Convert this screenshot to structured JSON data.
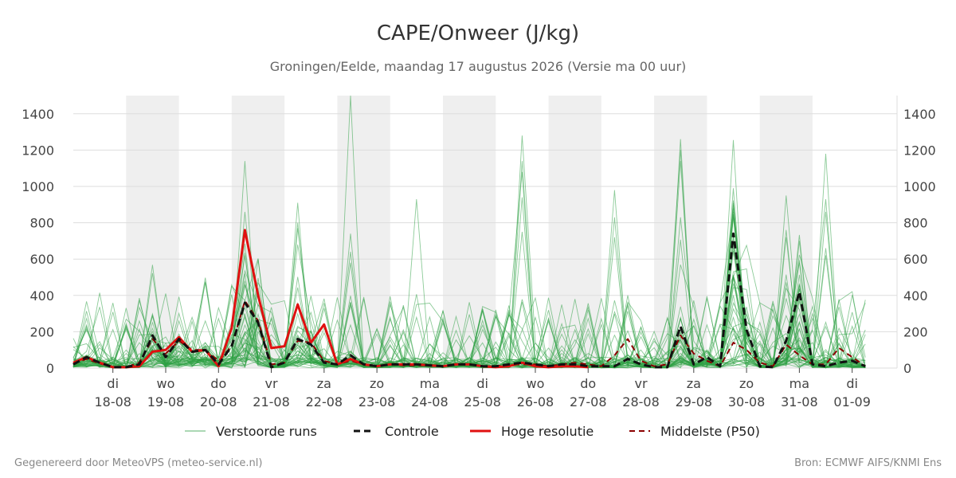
{
  "chart_data": {
    "type": "line",
    "title": "CAPE/Onweer (J/kg)",
    "subtitle": "Groningen/Eelde, maandag 17 augustus 2026 (Versie ma 00 uur)",
    "ylim": [
      0,
      1500
    ],
    "yticks": [
      0,
      200,
      400,
      600,
      800,
      1000,
      1200,
      1400
    ],
    "xlim": [
      0,
      15.6
    ],
    "x_ticks": [
      {
        "x": 0.75,
        "day": "di",
        "date": "18-08"
      },
      {
        "x": 1.75,
        "day": "wo",
        "date": "19-08"
      },
      {
        "x": 2.75,
        "day": "do",
        "date": "20-08"
      },
      {
        "x": 3.75,
        "day": "vr",
        "date": "21-08"
      },
      {
        "x": 4.75,
        "day": "za",
        "date": "22-08"
      },
      {
        "x": 5.75,
        "day": "zo",
        "date": "23-08"
      },
      {
        "x": 6.75,
        "day": "ma",
        "date": "24-08"
      },
      {
        "x": 7.75,
        "day": "di",
        "date": "25-08"
      },
      {
        "x": 8.75,
        "day": "wo",
        "date": "26-08"
      },
      {
        "x": 9.75,
        "day": "do",
        "date": "27-08"
      },
      {
        "x": 10.75,
        "day": "vr",
        "date": "28-08"
      },
      {
        "x": 11.75,
        "day": "za",
        "date": "29-08"
      },
      {
        "x": 12.75,
        "day": "zo",
        "date": "30-08"
      },
      {
        "x": 13.75,
        "day": "ma",
        "date": "31-08"
      },
      {
        "x": 14.75,
        "day": "di",
        "date": "01-09"
      }
    ],
    "shaded_bands": [
      [
        1.0,
        2.0
      ],
      [
        3.0,
        4.0
      ],
      [
        5.0,
        6.0
      ],
      [
        7.0,
        8.0
      ],
      [
        9.0,
        10.0
      ],
      [
        11.0,
        12.0
      ],
      [
        13.0,
        14.0
      ]
    ],
    "grid": true,
    "legend_position": "bottom",
    "series": [
      {
        "name": "Controle",
        "color": "#111111",
        "x": [
          0,
          0.25,
          0.5,
          0.75,
          1.0,
          1.25,
          1.5,
          1.75,
          2.0,
          2.25,
          2.5,
          2.75,
          3.0,
          3.25,
          3.5,
          3.75,
          4.0,
          4.25,
          4.5,
          4.75,
          5.0,
          5.25,
          5.5,
          5.75,
          6.0,
          6.25,
          6.5,
          6.75,
          7.0,
          7.25,
          7.5,
          7.75,
          8.0,
          8.25,
          8.5,
          8.75,
          9.0,
          9.25,
          9.5,
          9.75,
          10.0,
          10.25,
          10.5,
          10.75,
          11.0,
          11.25,
          11.5,
          11.75,
          12.0,
          12.25,
          12.5,
          12.75,
          13.0,
          13.25,
          13.5,
          13.75,
          14.0,
          14.25,
          14.5,
          14.75,
          15.0
        ],
        "values": [
          20,
          60,
          30,
          5,
          5,
          20,
          180,
          60,
          160,
          90,
          100,
          20,
          120,
          360,
          250,
          5,
          30,
          160,
          130,
          30,
          20,
          70,
          20,
          10,
          20,
          20,
          20,
          15,
          10,
          20,
          20,
          10,
          10,
          20,
          30,
          20,
          10,
          20,
          20,
          10,
          10,
          10,
          50,
          20,
          5,
          5,
          230,
          20,
          60,
          10,
          740,
          210,
          10,
          5,
          150,
          420,
          20,
          10,
          30,
          40,
          10
        ]
      },
      {
        "name": "Hoge resolutie",
        "color": "#e01010",
        "x": [
          0,
          0.25,
          0.5,
          0.75,
          1.0,
          1.25,
          1.5,
          1.75,
          2.0,
          2.25,
          2.5,
          2.75,
          3.0,
          3.25,
          3.5,
          3.75,
          4.0,
          4.25,
          4.5,
          4.75,
          5.0,
          5.25,
          5.5,
          5.75,
          6.0,
          6.25,
          6.5,
          6.75,
          7.0,
          7.25,
          7.5,
          7.75,
          8.0,
          8.25,
          8.5,
          8.75,
          9.0,
          9.25,
          9.5,
          9.75
        ],
        "values": [
          30,
          60,
          30,
          5,
          5,
          10,
          90,
          100,
          170,
          90,
          100,
          10,
          220,
          760,
          400,
          110,
          120,
          350,
          140,
          240,
          20,
          50,
          20,
          10,
          20,
          20,
          20,
          15,
          10,
          20,
          20,
          10,
          5,
          10,
          30,
          10,
          5,
          10,
          10,
          5
        ]
      },
      {
        "name": "Middelste (P50)",
        "color": "#8b0000",
        "x": [
          0,
          0.25,
          0.5,
          0.75,
          1.0,
          1.25,
          1.5,
          1.75,
          2.0,
          2.25,
          2.5,
          2.75,
          3.0,
          3.25,
          3.5,
          3.75,
          4.0,
          4.25,
          4.5,
          4.75,
          5.0,
          5.25,
          5.5,
          5.75,
          6.0,
          6.25,
          6.5,
          6.75,
          7.0,
          7.25,
          7.5,
          7.75,
          8.0,
          8.25,
          8.5,
          8.75,
          9.0,
          9.25,
          9.5,
          9.75,
          10.0,
          10.25,
          10.5,
          10.75,
          11.0,
          11.25,
          11.5,
          11.75,
          12.0,
          12.25,
          12.5,
          12.75,
          13.0,
          13.25,
          13.5,
          13.75,
          14.0,
          14.25,
          14.5,
          14.75,
          15.0
        ],
        "values": [
          25,
          50,
          25,
          5,
          5,
          30,
          160,
          80,
          150,
          100,
          100,
          40,
          120,
          370,
          260,
          20,
          30,
          150,
          140,
          40,
          20,
          40,
          20,
          10,
          20,
          15,
          15,
          15,
          10,
          20,
          20,
          10,
          10,
          20,
          20,
          20,
          10,
          20,
          30,
          20,
          10,
          70,
          160,
          40,
          10,
          20,
          180,
          80,
          40,
          10,
          140,
          100,
          30,
          10,
          130,
          70,
          20,
          20,
          110,
          60,
          10
        ]
      }
    ],
    "ensemble": {
      "name": "Verstoorde runs",
      "color": "#2ea043",
      "count": 50,
      "peaks": [
        {
          "x": 3.25,
          "values": [
            1140,
            860,
            620,
            520,
            480
          ]
        },
        {
          "x": 5.25,
          "values": [
            1500,
            740,
            640,
            580
          ]
        },
        {
          "x": 6.5,
          "values": [
            930,
            350
          ]
        },
        {
          "x": 8.5,
          "values": [
            1280,
            1140,
            1080,
            940,
            750
          ]
        },
        {
          "x": 10.25,
          "values": [
            980,
            830,
            720
          ]
        },
        {
          "x": 11.5,
          "values": [
            1260,
            1200,
            1140,
            830
          ]
        },
        {
          "x": 12.5,
          "values": [
            910,
            860,
            840
          ]
        },
        {
          "x": 14.25,
          "values": [
            1180,
            930,
            860,
            660,
            620
          ]
        },
        {
          "x": 4.25,
          "values": [
            910,
            800,
            770,
            680
          ]
        },
        {
          "x": 13.5,
          "values": [
            950,
            760,
            720
          ]
        }
      ]
    }
  },
  "legend": [
    {
      "label": "Verstoorde runs",
      "style": "thin-green"
    },
    {
      "label": "Controle",
      "style": "dashed-black"
    },
    {
      "label": "Hoge resolutie",
      "style": "solid-red"
    },
    {
      "label": "Middelste (P50)",
      "style": "dashed-darkred"
    }
  ],
  "footer": {
    "left": "Gegenereerd door MeteoVPS (meteo-service.nl)",
    "right": "Bron: ECMWF AIFS/KNMI Ens"
  }
}
